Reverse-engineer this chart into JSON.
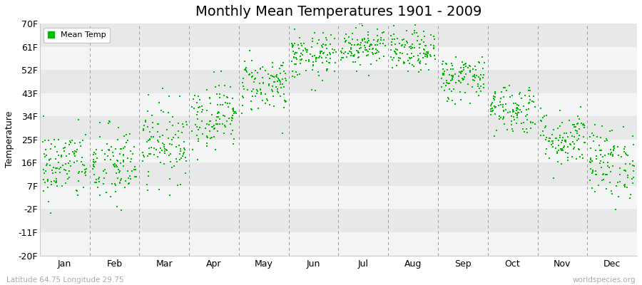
{
  "title": "Monthly Mean Temperatures 1901 - 2009",
  "ylabel": "Temperature",
  "xlabel_bottom_left": "Latitude 64.75 Longitude 29.75",
  "xlabel_bottom_right": "worldspecies.org",
  "yticks": [
    -20,
    -11,
    -2,
    7,
    16,
    25,
    34,
    43,
    52,
    61,
    70
  ],
  "ytick_labels": [
    "-20F",
    "-11F",
    "-2F",
    "7F",
    "16F",
    "25F",
    "34F",
    "43F",
    "52F",
    "61F",
    "70F"
  ],
  "ylim": [
    -20,
    70
  ],
  "months": [
    "Jan",
    "Feb",
    "Mar",
    "Apr",
    "May",
    "Jun",
    "Jul",
    "Aug",
    "Sep",
    "Oct",
    "Nov",
    "Dec"
  ],
  "dot_color": "#00bb00",
  "stripe_colors": [
    "#f5f5f5",
    "#e8e8e8"
  ],
  "title_fontsize": 14,
  "axis_label_fontsize": 9,
  "tick_label_fontsize": 9,
  "legend_label": "Mean Temp",
  "n_years": 109,
  "monthly_means_f": [
    15.0,
    14.5,
    24.0,
    34.5,
    46.5,
    57.0,
    61.5,
    59.0,
    49.0,
    37.0,
    25.5,
    16.0
  ],
  "monthly_std_f": [
    7.0,
    8.0,
    7.5,
    6.5,
    5.5,
    4.5,
    4.0,
    4.0,
    4.5,
    5.0,
    5.5,
    7.0
  ],
  "dashed_line_color": "#999999",
  "axis_line_color": "#cccccc",
  "bottom_text_color": "#aaaaaa"
}
